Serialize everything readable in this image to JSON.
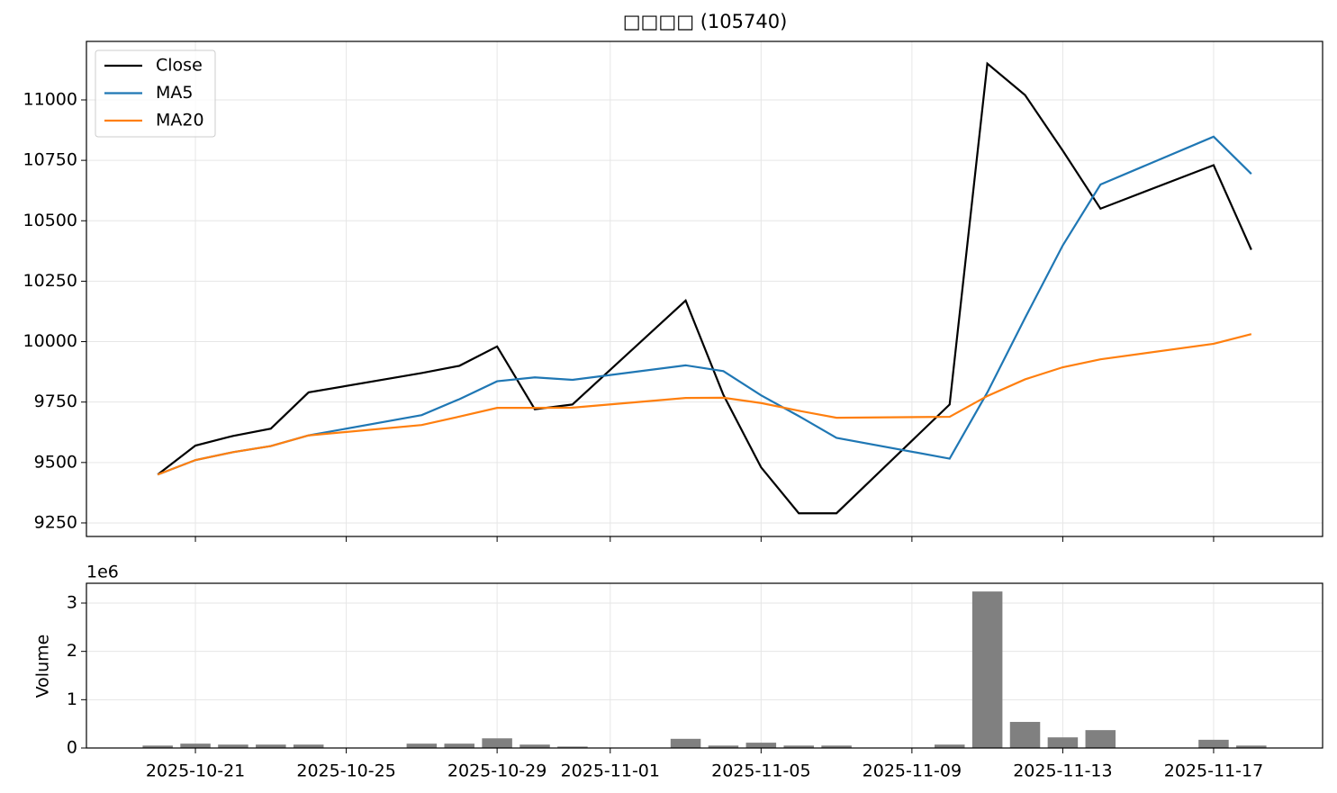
{
  "chart_data": [
    {
      "type": "line",
      "title": "□□□□ (105740)",
      "x": [
        "2025-10-20",
        "2025-10-21",
        "2025-10-22",
        "2025-10-23",
        "2025-10-24",
        "2025-10-27",
        "2025-10-28",
        "2025-10-29",
        "2025-10-30",
        "2025-10-31",
        "2025-11-03",
        "2025-11-04",
        "2025-11-05",
        "2025-11-06",
        "2025-11-07",
        "2025-11-10",
        "2025-11-11",
        "2025-11-12",
        "2025-11-13",
        "2025-11-14",
        "2025-11-17",
        "2025-11-18"
      ],
      "series": [
        {
          "name": "Close",
          "color": "#000000",
          "values": [
            9450,
            9570,
            9610,
            9640,
            9790,
            9870,
            9900,
            9980,
            9720,
            9740,
            10170,
            9780,
            9480,
            9290,
            9290,
            9740,
            11150,
            11020,
            10790,
            10550,
            10730,
            10380
          ]
        },
        {
          "name": "MA5",
          "color": "#1f77b4",
          "values": [
            9450,
            9510,
            9543,
            9568,
            9612,
            9696,
            9762,
            9836,
            9852,
            9842,
            9902,
            9878,
            9778,
            9692,
            9602,
            9516,
            9790,
            10098,
            10398,
            10650,
            10848,
            10694
          ]
        },
        {
          "name": "MA20",
          "color": "#ff7f0e",
          "values": [
            9450,
            9510,
            9543,
            9568,
            9612,
            9655,
            9690,
            9726,
            9726,
            9727,
            9767,
            9768,
            9746,
            9714,
            9685,
            9689,
            9775,
            9844,
            9894,
            9927,
            9991,
            10031
          ]
        }
      ],
      "ylim": [
        9194,
        11242
      ],
      "yticks": [
        9250,
        9500,
        9750,
        10000,
        10250,
        10500,
        10750,
        11000
      ],
      "xticks": [
        "2025-10-21",
        "2025-10-25",
        "2025-10-29",
        "2025-11-01",
        "2025-11-05",
        "2025-11-09",
        "2025-11-13",
        "2025-11-17"
      ],
      "grid": true,
      "legend": "upper left"
    },
    {
      "type": "bar",
      "ylabel": "Volume",
      "offset_label": "1e6",
      "color": "#808080",
      "x": [
        "2025-10-20",
        "2025-10-21",
        "2025-10-22",
        "2025-10-23",
        "2025-10-24",
        "2025-10-27",
        "2025-10-28",
        "2025-10-29",
        "2025-10-30",
        "2025-10-31",
        "2025-11-03",
        "2025-11-04",
        "2025-11-05",
        "2025-11-06",
        "2025-11-07",
        "2025-11-10",
        "2025-11-11",
        "2025-11-12",
        "2025-11-13",
        "2025-11-14",
        "2025-11-17",
        "2025-11-18"
      ],
      "values": [
        0.05,
        0.09,
        0.07,
        0.07,
        0.07,
        0.09,
        0.09,
        0.2,
        0.07,
        0.03,
        0.19,
        0.05,
        0.11,
        0.05,
        0.05,
        0.07,
        3.24,
        0.54,
        0.22,
        0.37,
        0.17,
        0.05
      ],
      "ylim": [
        0,
        3.41
      ],
      "yticks": [
        0,
        1,
        2,
        3
      ],
      "xticks": [
        "2025-10-21",
        "2025-10-25",
        "2025-10-29",
        "2025-11-01",
        "2025-11-05",
        "2025-11-09",
        "2025-11-13",
        "2025-11-17"
      ],
      "grid": true
    }
  ]
}
